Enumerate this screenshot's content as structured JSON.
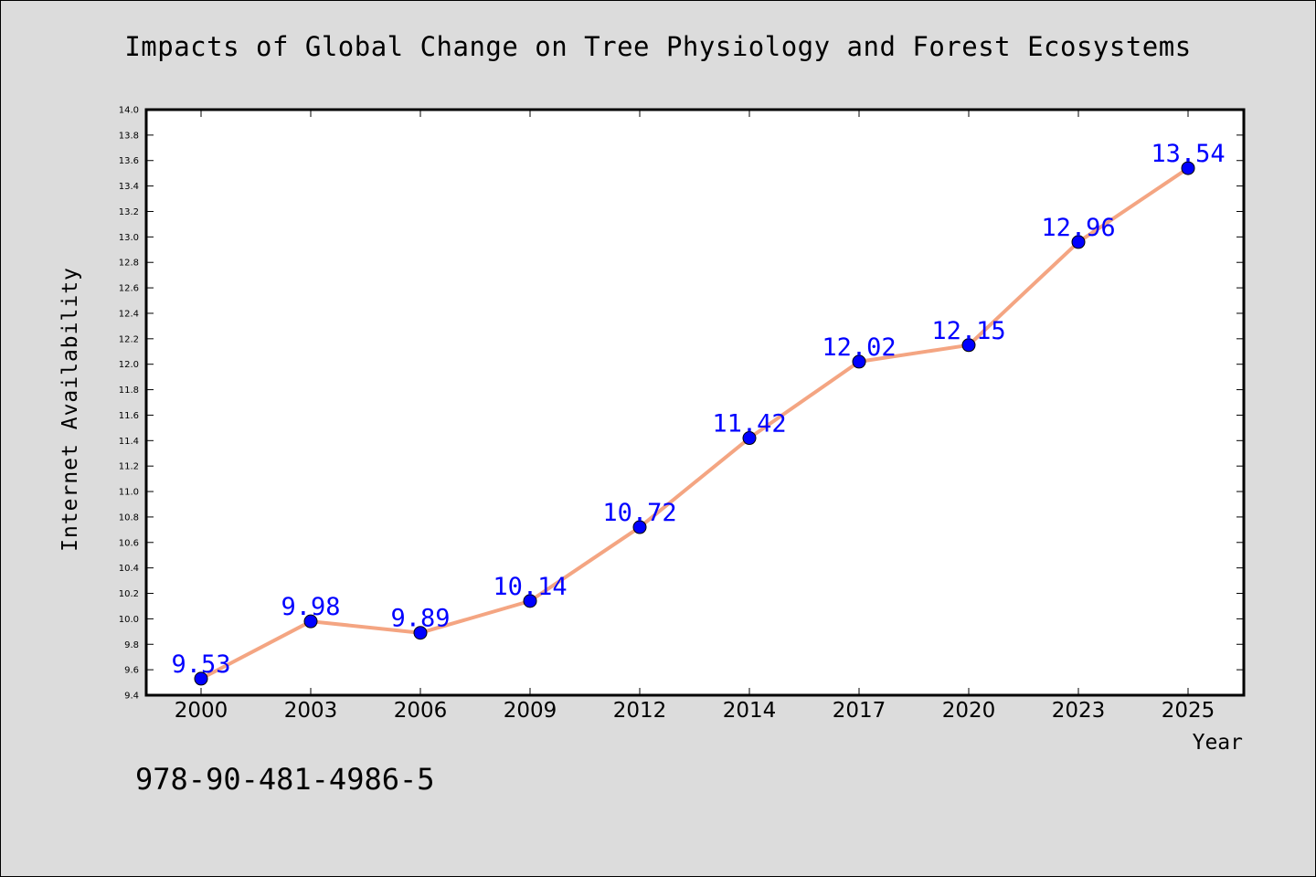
{
  "chart_data": {
    "type": "line",
    "title": "Impacts of Global Change on Tree Physiology and Forest Ecosystems",
    "xlabel": "Year",
    "ylabel": "Internet Availability",
    "categories": [
      "2000",
      "2003",
      "2006",
      "2009",
      "2012",
      "2014",
      "2017",
      "2020",
      "2023",
      "2025"
    ],
    "series": [
      {
        "values": [
          9.53,
          9.98,
          9.89,
          10.14,
          10.72,
          11.42,
          12.02,
          12.15,
          12.96,
          13.54
        ],
        "data_labels": [
          "9.53",
          "9.98",
          "9.89",
          "10.14",
          "10.72",
          "11.42",
          "12.02",
          "12.15",
          "12.96",
          "13.54"
        ],
        "line_color": "#f4a582",
        "marker_color": "#0000ff",
        "label_color": "#0000ff"
      }
    ],
    "ylim": [
      9.4,
      14.0
    ],
    "yticks": [
      "9.4",
      "9.6",
      "9.8",
      "10.0",
      "10.2",
      "10.4",
      "10.6",
      "10.8",
      "11.0",
      "11.2",
      "11.4",
      "11.6",
      "11.8",
      "12.0",
      "12.2",
      "12.4",
      "12.6",
      "12.8",
      "13.0",
      "13.2",
      "13.4",
      "13.6",
      "13.8",
      "14.0"
    ],
    "grid": false,
    "legend": "none"
  },
  "annotation": {
    "isbn": "978-90-481-4986-5"
  }
}
